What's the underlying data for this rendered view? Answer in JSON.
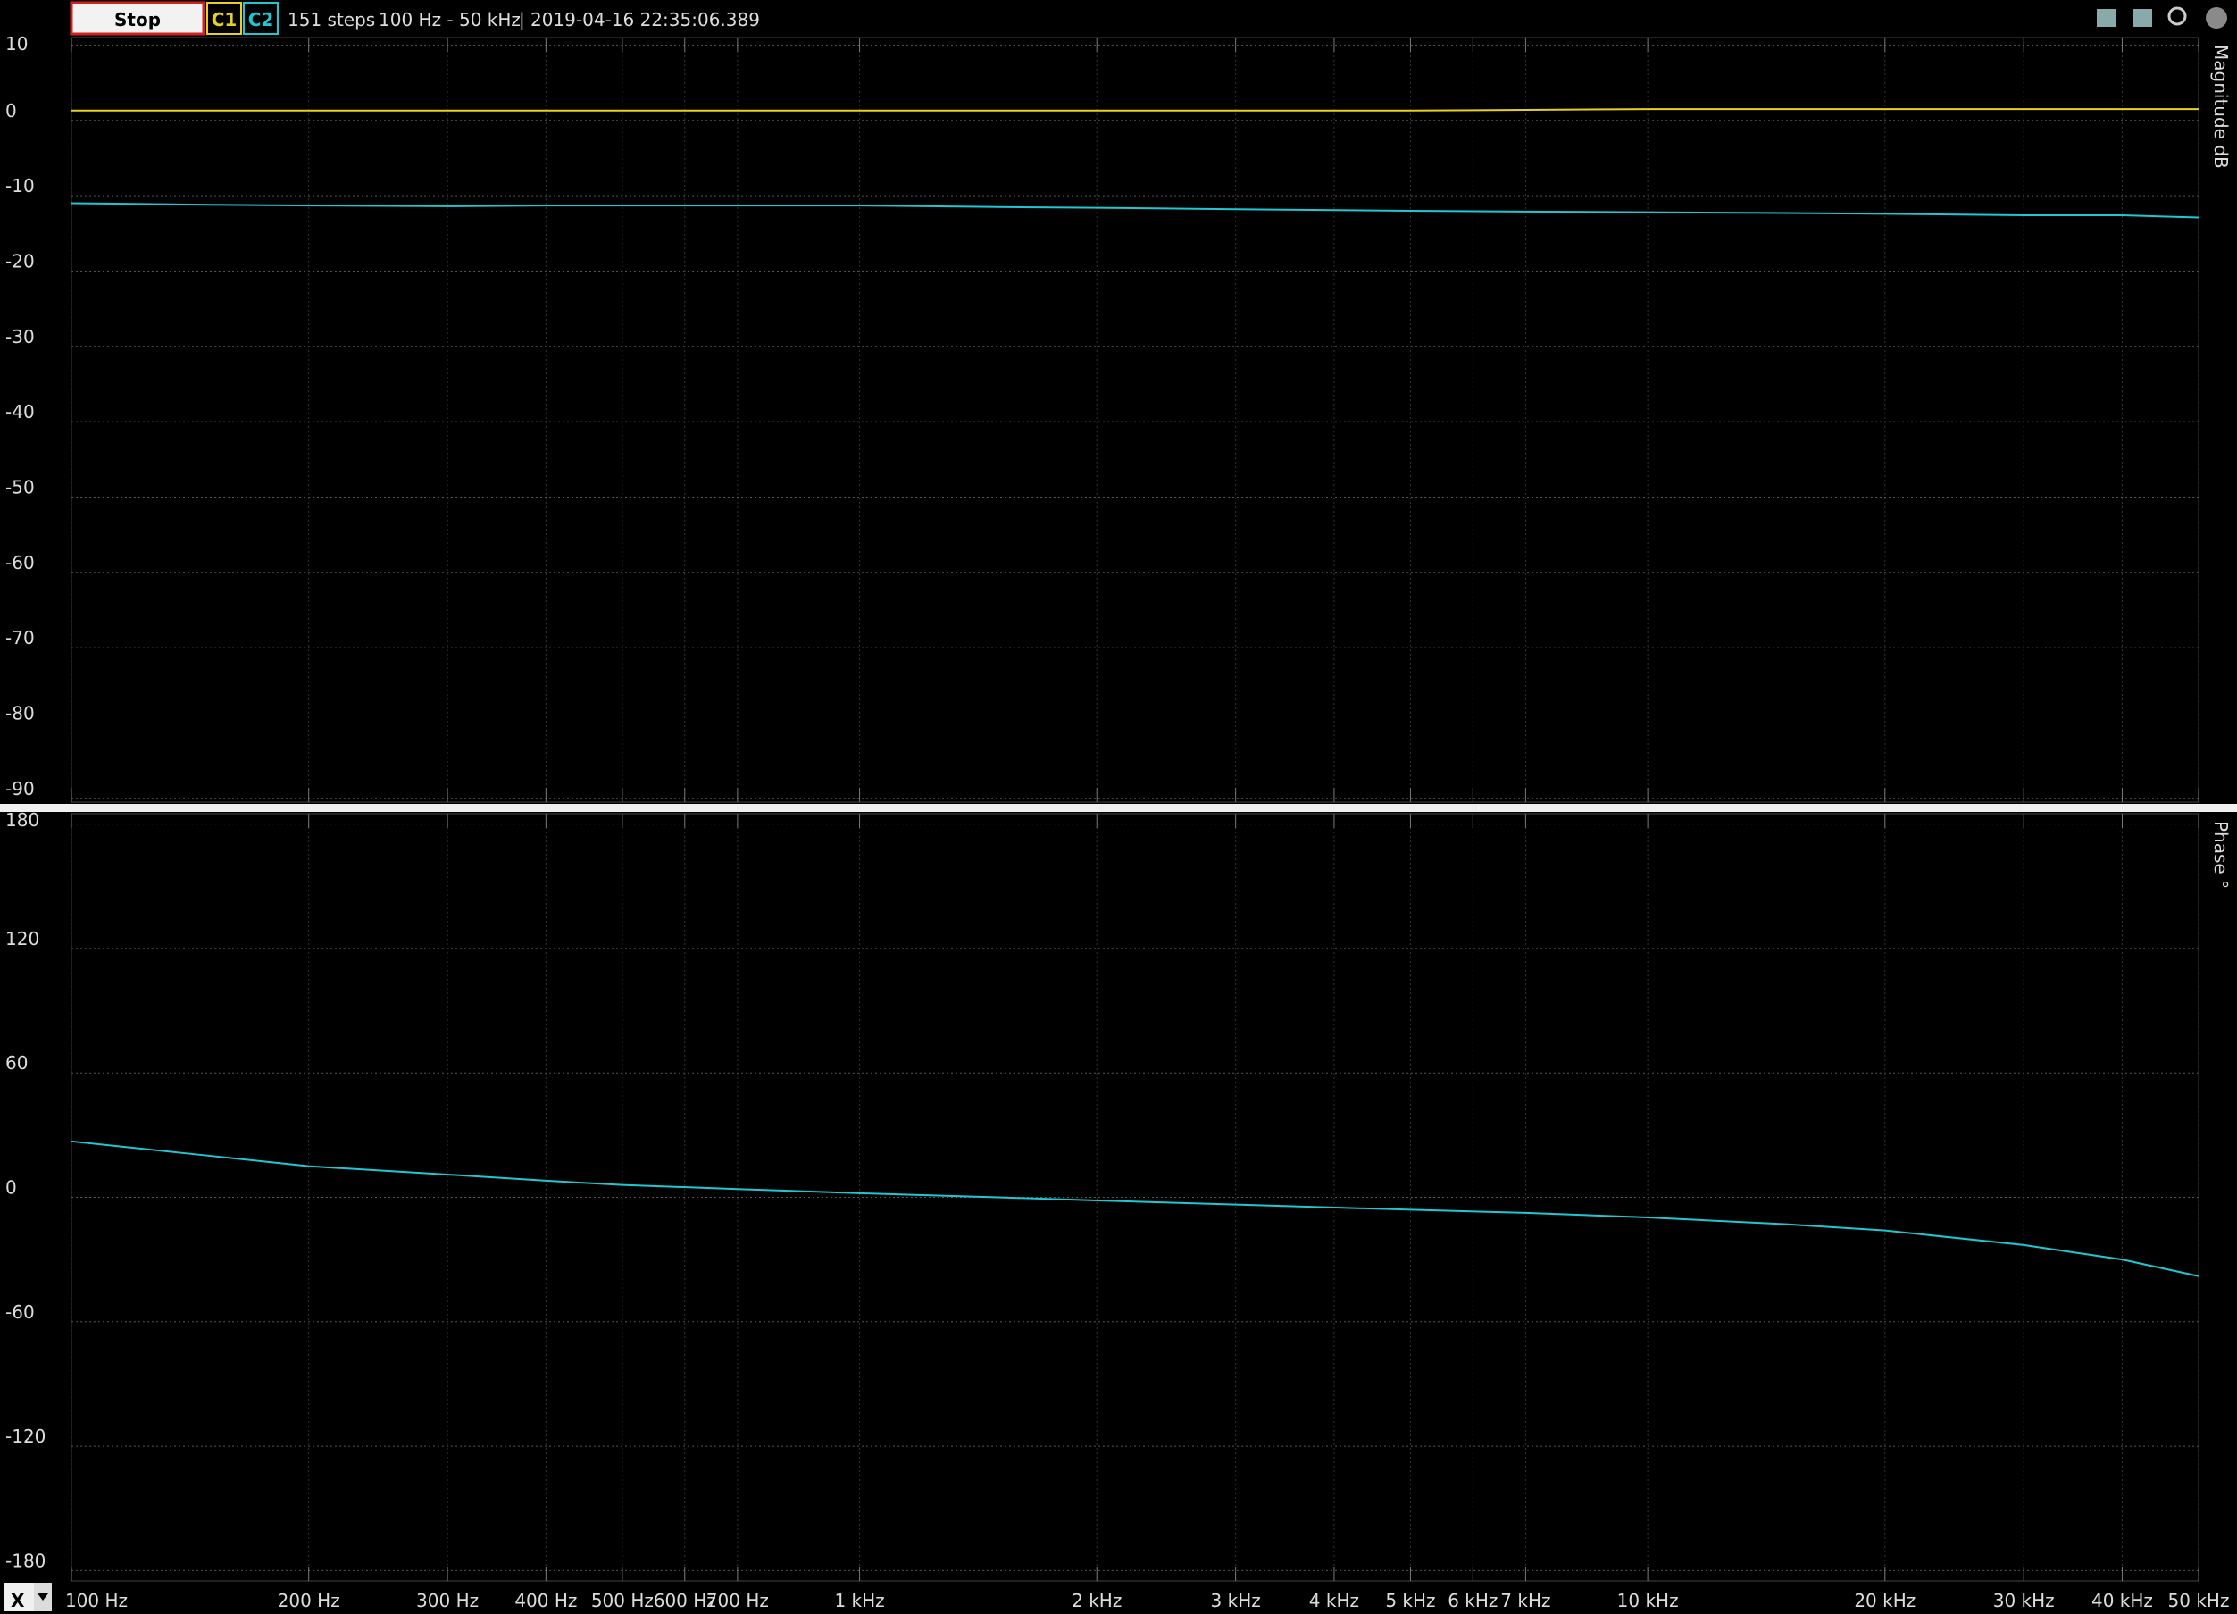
{
  "toolbar": {
    "button": "Stop",
    "status": [
      "151 steps",
      "100 Hz - 50 kHz",
      "2019-04-16 22:35:06.389"
    ],
    "x_selector": "X"
  },
  "chart_data": [
    {
      "type": "line",
      "y_label": "Magnitude dB",
      "x": [
        100,
        150,
        200,
        300,
        400,
        500,
        700,
        1000,
        1500,
        2000,
        3000,
        5000,
        7000,
        10000,
        15000,
        20000,
        30000,
        40000,
        50000
      ],
      "series": [
        {
          "name": "C1",
          "color": "#e6d21e",
          "values": [
            1.3,
            1.3,
            1.3,
            1.3,
            1.3,
            1.3,
            1.3,
            1.3,
            1.3,
            1.3,
            1.3,
            1.3,
            1.4,
            1.5,
            1.5,
            1.5,
            1.5,
            1.5,
            1.5
          ]
        },
        {
          "name": "C2",
          "color": "#1ec8d2",
          "values": [
            -11.0,
            -11.2,
            -11.3,
            -11.4,
            -11.3,
            -11.3,
            -11.3,
            -11.3,
            -11.5,
            -11.6,
            -11.8,
            -12.0,
            -12.1,
            -12.2,
            -12.3,
            -12.4,
            -12.6,
            -12.6,
            -12.9
          ]
        }
      ],
      "ylim": [
        -90.5,
        11
      ],
      "yticks": [
        10,
        0,
        -10,
        -20,
        -30,
        -40,
        -50,
        -60,
        -70,
        -80,
        -90
      ],
      "grid": true
    },
    {
      "type": "line",
      "y_label": "Phase °",
      "x": [
        100,
        150,
        200,
        300,
        400,
        500,
        700,
        1000,
        1500,
        2000,
        3000,
        5000,
        7000,
        10000,
        15000,
        20000,
        30000,
        40000,
        50000
      ],
      "series": [
        {
          "color": "#1ec8d2",
          "values": [
            27,
            20,
            15,
            11,
            8,
            6,
            4,
            2,
            0,
            -1.5,
            -3.5,
            -6,
            -7.5,
            -9.7,
            -13,
            -16,
            -23,
            -30,
            -38
          ]
        }
      ],
      "ylim": [
        -185,
        185
      ],
      "yticks": [
        180,
        120,
        60,
        0,
        -60,
        -120,
        -180
      ],
      "grid": true,
      "x_scale": "log",
      "xlim": [
        100,
        50000
      ],
      "xticks": [
        {
          "value": 100,
          "label": "100 Hz"
        },
        {
          "value": 200,
          "label": "200 Hz"
        },
        {
          "value": 300,
          "label": "300 Hz"
        },
        {
          "value": 400,
          "label": "400 Hz"
        },
        {
          "value": 500,
          "label": "500 Hz"
        },
        {
          "value": 600,
          "label": "600 Hz"
        },
        {
          "value": 700,
          "label": "700 Hz"
        },
        {
          "value": 1000,
          "label": "1 kHz"
        },
        {
          "value": 2000,
          "label": "2 kHz"
        },
        {
          "value": 3000,
          "label": "3 kHz"
        },
        {
          "value": 4000,
          "label": "4 kHz"
        },
        {
          "value": 5000,
          "label": "5 kHz"
        },
        {
          "value": 6000,
          "label": "6 kHz"
        },
        {
          "value": 7000,
          "label": "7 kHz"
        },
        {
          "value": 10000,
          "label": "10 kHz"
        },
        {
          "value": 20000,
          "label": "20 kHz"
        },
        {
          "value": 30000,
          "label": "30 kHz"
        },
        {
          "value": 40000,
          "label": "40 kHz"
        },
        {
          "value": 50000,
          "label": "50 kHz"
        }
      ]
    }
  ]
}
